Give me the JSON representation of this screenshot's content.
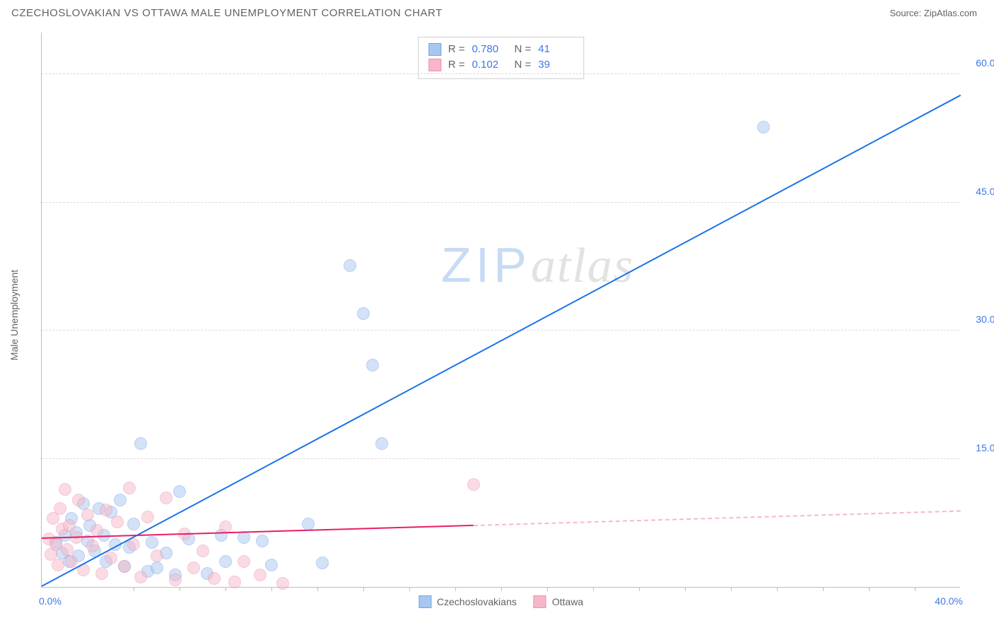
{
  "header": {
    "title": "CZECHOSLOVAKIAN VS OTTAWA MALE UNEMPLOYMENT CORRELATION CHART",
    "source_prefix": "Source: ",
    "source_name": "ZipAtlas.com"
  },
  "watermark": {
    "part1": "ZIP",
    "part2": "atlas"
  },
  "chart": {
    "type": "scatter",
    "ylabel": "Male Unemployment",
    "xlim": [
      0,
      40
    ],
    "ylim": [
      0,
      65
    ],
    "x_axis": {
      "start_label": "0.0%",
      "end_label": "40.0%",
      "tick_positions_pct": [
        10,
        15,
        20,
        25,
        30,
        35,
        40,
        45,
        50,
        55,
        60,
        65,
        70,
        75,
        80,
        85,
        90,
        95
      ]
    },
    "y_axis": {
      "gridlines": [
        {
          "value": 15,
          "label": "15.0%"
        },
        {
          "value": 30,
          "label": "30.0%"
        },
        {
          "value": 45,
          "label": "45.0%"
        },
        {
          "value": 60,
          "label": "60.0%"
        }
      ]
    },
    "background_color": "#ffffff",
    "grid_color": "#d9d9d9",
    "axis_color": "#bdbdbd",
    "label_color": "#5f6368",
    "tick_label_color": "#3b78e7",
    "marker_radius": 9,
    "marker_opacity": 0.5
  },
  "series": [
    {
      "id": "czech",
      "name": "Czechoslovakians",
      "fill": "#a8c7f0",
      "stroke": "#6fa3e6",
      "trend": {
        "color": "#1a73e8",
        "x1": 0,
        "y1": 0,
        "x2": 40,
        "y2": 57.5,
        "solid_until_x": 40
      },
      "stats": {
        "R": "0.780",
        "N": "41"
      },
      "points": [
        [
          0.6,
          5.2
        ],
        [
          0.9,
          4.0
        ],
        [
          1.0,
          6.0
        ],
        [
          1.2,
          3.0
        ],
        [
          1.3,
          8.0
        ],
        [
          1.5,
          6.4
        ],
        [
          1.6,
          3.6
        ],
        [
          1.8,
          9.8
        ],
        [
          2.0,
          5.4
        ],
        [
          2.1,
          7.2
        ],
        [
          2.3,
          4.2
        ],
        [
          2.5,
          9.2
        ],
        [
          2.7,
          6.0
        ],
        [
          2.8,
          3.0
        ],
        [
          3.0,
          8.8
        ],
        [
          3.2,
          5.0
        ],
        [
          3.4,
          10.2
        ],
        [
          3.6,
          2.4
        ],
        [
          3.8,
          4.6
        ],
        [
          4.0,
          7.4
        ],
        [
          4.3,
          16.8
        ],
        [
          4.6,
          1.8
        ],
        [
          4.8,
          5.2
        ],
        [
          5.0,
          2.2
        ],
        [
          5.4,
          4.0
        ],
        [
          5.8,
          1.4
        ],
        [
          6.0,
          11.2
        ],
        [
          6.4,
          5.6
        ],
        [
          7.2,
          1.6
        ],
        [
          7.8,
          6.0
        ],
        [
          8.0,
          3.0
        ],
        [
          8.8,
          5.8
        ],
        [
          9.6,
          5.4
        ],
        [
          10.0,
          2.6
        ],
        [
          11.6,
          7.4
        ],
        [
          12.2,
          2.8
        ],
        [
          13.4,
          37.6
        ],
        [
          14.0,
          32.0
        ],
        [
          14.4,
          26.0
        ],
        [
          14.8,
          16.8
        ],
        [
          31.4,
          53.8
        ]
      ]
    },
    {
      "id": "ottawa",
      "name": "Ottawa",
      "fill": "#f6b8c9",
      "stroke": "#ef8fae",
      "trend": {
        "color": "#e91e63",
        "x1": 0,
        "y1": 5.6,
        "x2": 40,
        "y2": 8.8,
        "solid_until_x": 18.8
      },
      "stats": {
        "R": "0.102",
        "N": "39"
      },
      "points": [
        [
          0.3,
          5.6
        ],
        [
          0.4,
          3.8
        ],
        [
          0.5,
          8.0
        ],
        [
          0.6,
          5.0
        ],
        [
          0.7,
          2.6
        ],
        [
          0.8,
          9.2
        ],
        [
          0.9,
          6.8
        ],
        [
          1.0,
          11.4
        ],
        [
          1.1,
          4.4
        ],
        [
          1.2,
          7.2
        ],
        [
          1.3,
          3.0
        ],
        [
          1.5,
          5.8
        ],
        [
          1.6,
          10.2
        ],
        [
          1.8,
          2.0
        ],
        [
          2.0,
          8.4
        ],
        [
          2.2,
          4.8
        ],
        [
          2.4,
          6.6
        ],
        [
          2.6,
          1.6
        ],
        [
          2.8,
          9.0
        ],
        [
          3.0,
          3.4
        ],
        [
          3.3,
          7.6
        ],
        [
          3.6,
          2.4
        ],
        [
          3.8,
          11.6
        ],
        [
          4.0,
          5.0
        ],
        [
          4.3,
          1.2
        ],
        [
          4.6,
          8.2
        ],
        [
          5.0,
          3.6
        ],
        [
          5.4,
          10.4
        ],
        [
          5.8,
          0.8
        ],
        [
          6.2,
          6.2
        ],
        [
          6.6,
          2.2
        ],
        [
          7.0,
          4.2
        ],
        [
          7.5,
          1.0
        ],
        [
          8.0,
          7.0
        ],
        [
          8.4,
          0.6
        ],
        [
          8.8,
          3.0
        ],
        [
          9.5,
          1.4
        ],
        [
          10.5,
          0.4
        ],
        [
          18.8,
          12.0
        ]
      ]
    }
  ],
  "stats_box": {
    "r_label": "R  =",
    "n_label": "N  ="
  },
  "legend_bottom": {
    "items": [
      "Czechoslovakians",
      "Ottawa"
    ]
  }
}
